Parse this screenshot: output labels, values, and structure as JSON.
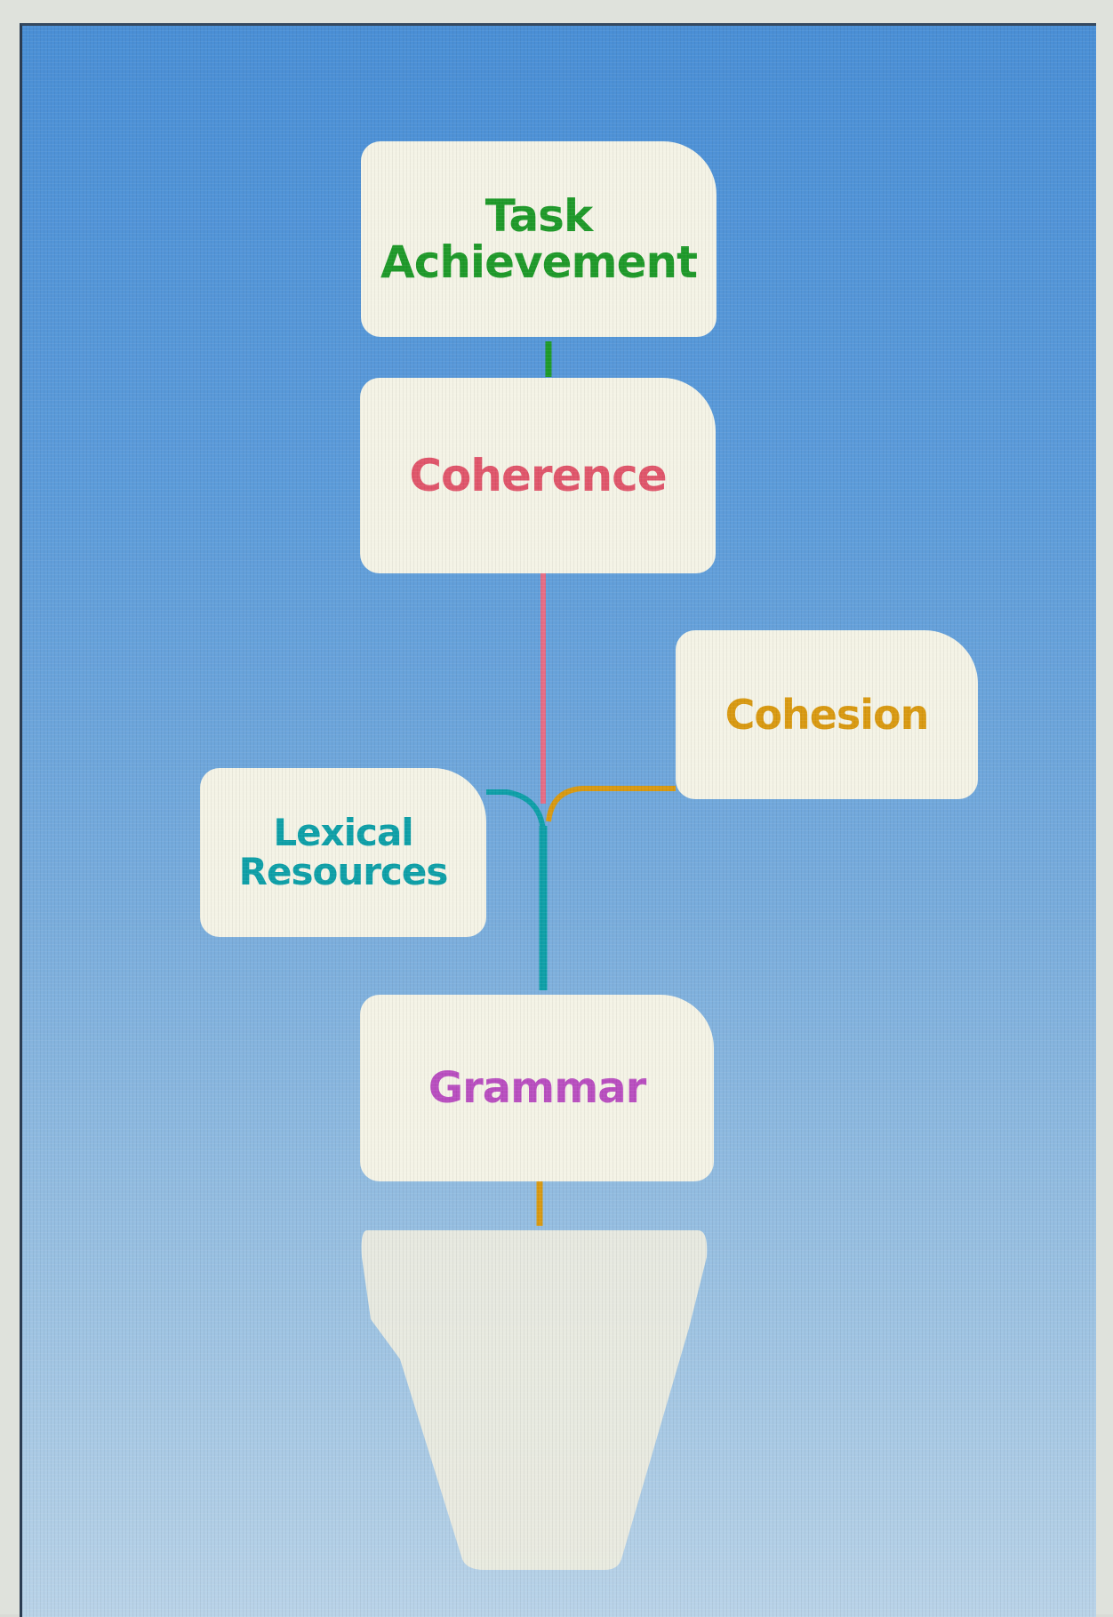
{
  "diagram": {
    "nodes": [
      {
        "id": "task",
        "label": "Task\nAchievement",
        "color": "#1f9a2a"
      },
      {
        "id": "coherence",
        "label": "Coherence",
        "color": "#e0566b"
      },
      {
        "id": "cohesion",
        "label": "Cohesion",
        "color": "#d99a12"
      },
      {
        "id": "lexical",
        "label": "Lexical\nResources",
        "color": "#0fa0a8"
      },
      {
        "id": "grammar",
        "label": "Grammar",
        "color": "#b94fc0"
      }
    ],
    "links": [
      {
        "from": "task",
        "to": "coherence",
        "color": "#1f9a2a"
      },
      {
        "from": "coherence",
        "to": "grammar",
        "color": "#e0566b"
      },
      {
        "from": "cohesion",
        "to": "stem",
        "color": "#d99a12"
      },
      {
        "from": "lexical",
        "to": "stem",
        "color": "#0fa0a8"
      },
      {
        "from": "grammar",
        "to": "pot",
        "color": "#d99a12"
      }
    ]
  }
}
